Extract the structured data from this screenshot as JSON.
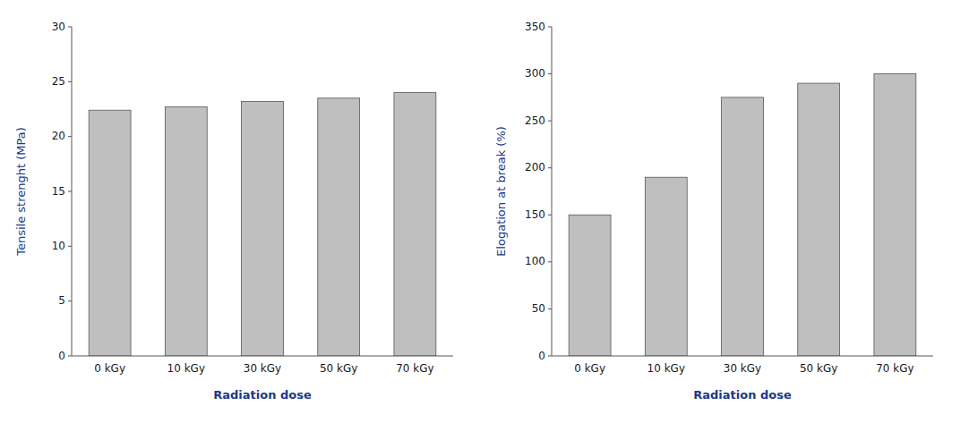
{
  "chart_data": [
    {
      "type": "bar",
      "categories": [
        "0 kGy",
        "10 kGy",
        "30 kGy",
        "50 kGy",
        "70 kGy"
      ],
      "values": [
        22.4,
        22.7,
        23.2,
        23.5,
        24.0
      ],
      "color": "#bfbfbf",
      "xlabel": "Radiation dose",
      "ylabel": "Tensile strenght (MPa)",
      "ylim": [
        0,
        30
      ],
      "yticks": [
        0,
        5,
        10,
        15,
        20,
        25,
        30
      ],
      "grid": false
    },
    {
      "type": "bar",
      "categories": [
        "0 kGy",
        "10 kGy",
        "30 kGy",
        "50 kGy",
        "70 kGy"
      ],
      "values": [
        150,
        190,
        275,
        290,
        300
      ],
      "color": "#bfbfbf",
      "xlabel": "Radiation dose",
      "ylabel": "Elogation at break (%)",
      "ylim": [
        0,
        350
      ],
      "yticks": [
        0,
        50,
        100,
        150,
        200,
        250,
        300,
        350
      ],
      "grid": false
    }
  ]
}
